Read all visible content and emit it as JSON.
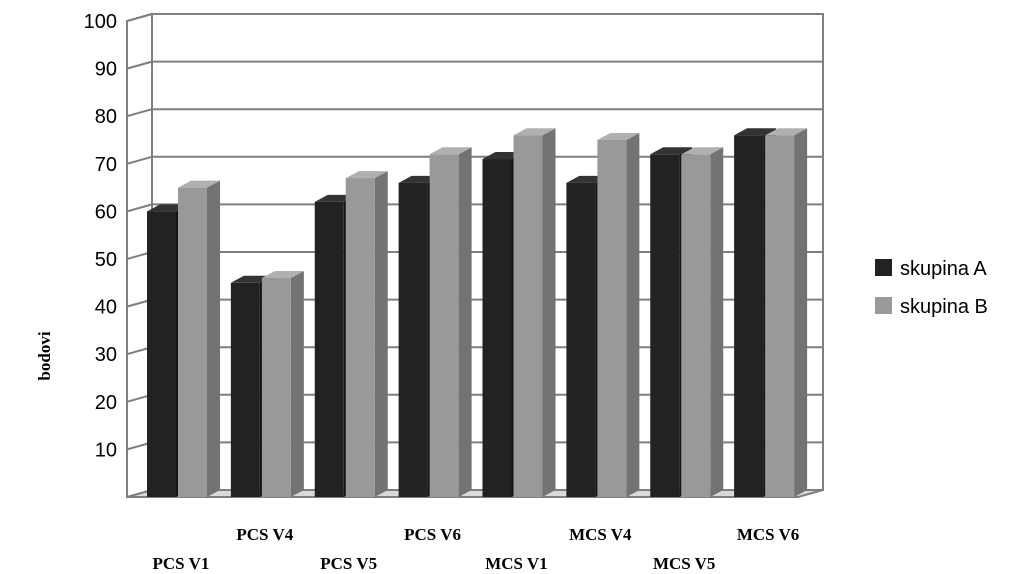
{
  "chart_data": {
    "type": "bar",
    "style": "3d-clustered-column",
    "categories": [
      "PCS V1",
      "PCS V4",
      "PCS V5",
      "PCS V6",
      "MCS V1",
      "MCS V4",
      "MCS V5",
      "MCS V6"
    ],
    "series": [
      {
        "name": "skupina A",
        "values": [
          60,
          45,
          62,
          66,
          71,
          66,
          72,
          76
        ],
        "color": "#222222"
      },
      {
        "name": "skupina B",
        "values": [
          65,
          46,
          67,
          72,
          76,
          75,
          72,
          76
        ],
        "color": "#999999"
      }
    ],
    "ylabel": "bodovi",
    "ylim": [
      0,
      100
    ],
    "yticks": [
      10,
      20,
      30,
      40,
      50,
      60,
      70,
      80,
      90,
      100
    ],
    "grid": true,
    "legend_position": "right",
    "colors": {
      "grid": "#7f7f7f",
      "bar_a": "#222222",
      "bar_b": "#999999"
    }
  }
}
